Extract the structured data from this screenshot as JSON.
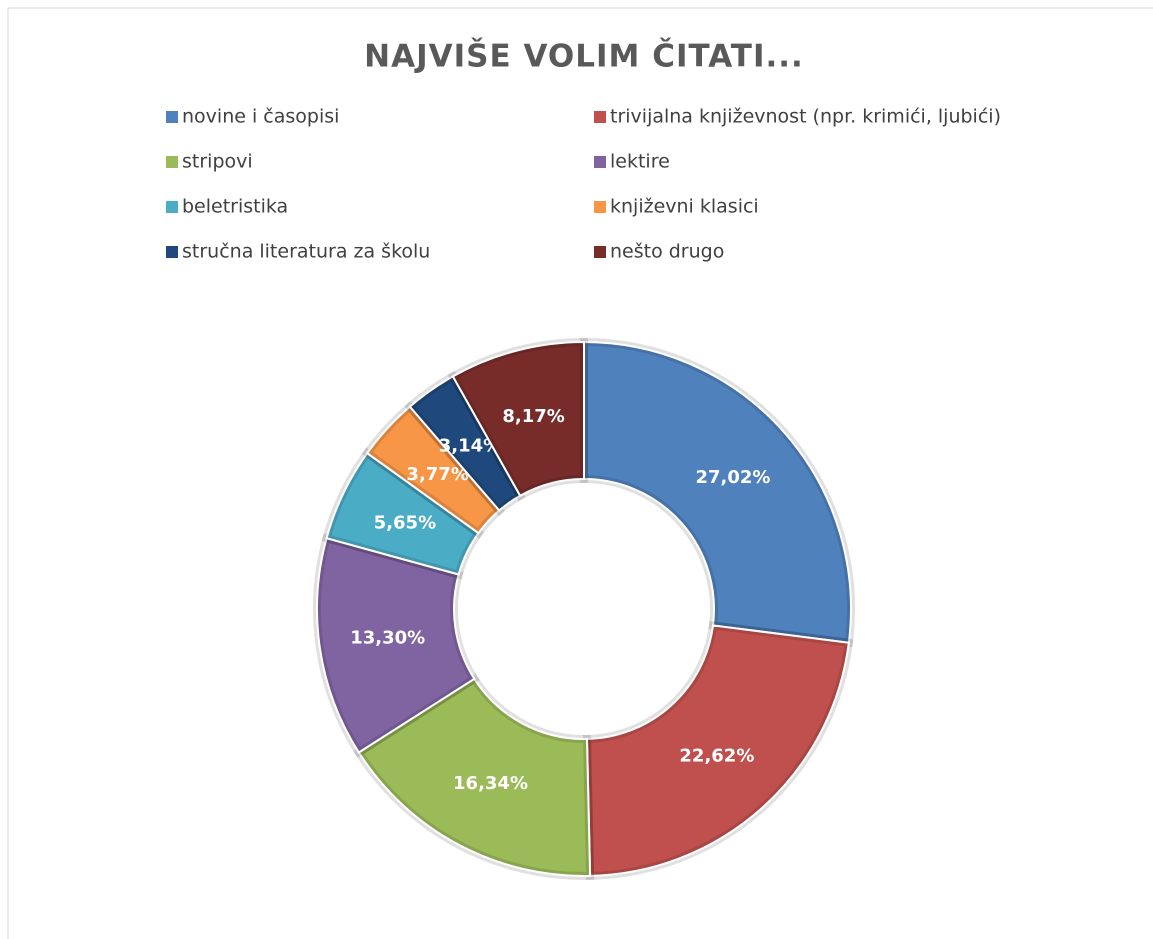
{
  "chart_data": {
    "type": "donut",
    "title": "NAJVIŠE VOLIM ČITATI...",
    "categories": [
      "novine i časopisi",
      "trivijalna književnost (npr. krimići, ljubići)",
      "stripovi",
      "lektire",
      "beletristika",
      "književni klasici",
      "stručna literatura za školu",
      "nešto drugo"
    ],
    "values": [
      27.02,
      22.62,
      16.34,
      13.3,
      5.65,
      3.77,
      3.14,
      8.17
    ],
    "value_labels": [
      "27,02%",
      "22,62%",
      "16,34%",
      "13,30%",
      "5,65%",
      "3,77%",
      "3,14%",
      "8,17%"
    ],
    "colors": [
      "#4f81bd",
      "#c0504d",
      "#9bbb59",
      "#8064a2",
      "#4bacc6",
      "#f79646",
      "#1f497d",
      "#772c2a"
    ],
    "legend": "top"
  }
}
